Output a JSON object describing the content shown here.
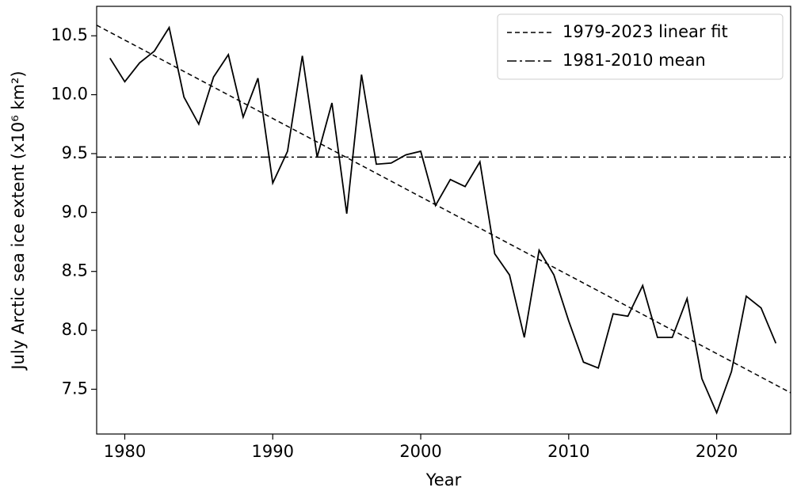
{
  "chart_data": {
    "type": "line",
    "x_label": "Year",
    "y_label": "July Arctic sea ice extent (x10⁶ km²)",
    "x": [
      1979,
      1980,
      1981,
      1982,
      1983,
      1984,
      1985,
      1986,
      1987,
      1988,
      1989,
      1990,
      1991,
      1992,
      1993,
      1994,
      1995,
      1996,
      1997,
      1998,
      1999,
      2000,
      2001,
      2002,
      2003,
      2004,
      2005,
      2006,
      2007,
      2008,
      2009,
      2010,
      2011,
      2012,
      2013,
      2014,
      2015,
      2016,
      2017,
      2018,
      2019,
      2020,
      2021,
      2022,
      2023,
      2024
    ],
    "values": [
      10.31,
      10.11,
      10.27,
      10.37,
      10.57,
      9.98,
      9.75,
      10.15,
      10.34,
      9.81,
      10.14,
      9.25,
      9.52,
      10.33,
      9.47,
      9.93,
      8.99,
      10.17,
      9.41,
      9.42,
      9.49,
      9.52,
      9.06,
      9.28,
      9.22,
      9.43,
      8.65,
      8.47,
      7.94,
      8.68,
      8.47,
      8.08,
      7.73,
      7.68,
      8.14,
      8.12,
      8.38,
      7.94,
      7.94,
      8.27,
      7.59,
      7.3,
      7.65,
      8.29,
      8.19,
      7.89
    ],
    "color": "#000000",
    "lines": [
      {
        "name": "1979-2023 linear fit",
        "style": "dashed",
        "x": [
          1978.1,
          2025
        ],
        "values": [
          10.59,
          7.47
        ]
      },
      {
        "name": "1981-2010 mean",
        "style": "dashdot",
        "x": [
          1978.1,
          2025
        ],
        "values": [
          9.47,
          9.47
        ]
      }
    ],
    "xlim": [
      1978.1,
      2025
    ],
    "ylim": [
      7.12,
      10.75
    ],
    "xticks": [
      1980,
      1990,
      2000,
      2010,
      2020
    ],
    "yticks": [
      7.5,
      {
        "value": 8.0,
        "label": "8.0"
      },
      8.5,
      {
        "value": 9.0,
        "label": "9.0"
      },
      9.5,
      {
        "value": 10.0,
        "label": "10.0"
      },
      10.5
    ],
    "legend": "upper right"
  }
}
